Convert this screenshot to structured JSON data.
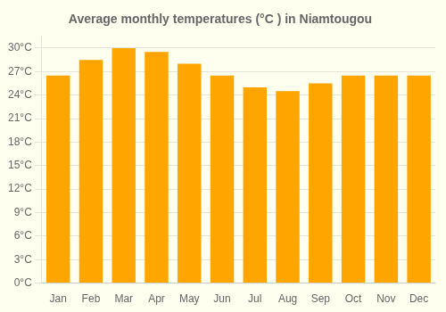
{
  "chart_data": {
    "type": "bar",
    "title": "Average monthly temperatures (°C ) in Niamtougou",
    "categories": [
      "Jan",
      "Feb",
      "Mar",
      "Apr",
      "May",
      "Jun",
      "Jul",
      "Aug",
      "Sep",
      "Oct",
      "Nov",
      "Dec"
    ],
    "values": [
      26.5,
      28.5,
      30.0,
      29.5,
      28.0,
      26.5,
      25.0,
      24.5,
      25.5,
      26.5,
      26.5,
      26.5
    ],
    "color": "#FFA500",
    "ylim": [
      0,
      31.5
    ],
    "yticks": [
      {
        "value": 0,
        "label": "0°C"
      },
      {
        "value": 3,
        "label": "3°C"
      },
      {
        "value": 6,
        "label": "6°C"
      },
      {
        "value": 9,
        "label": "9°C"
      },
      {
        "value": 12,
        "label": "12°C"
      },
      {
        "value": 15,
        "label": "15°C"
      },
      {
        "value": 18,
        "label": "18°C"
      },
      {
        "value": 21,
        "label": "21°C"
      },
      {
        "value": 24,
        "label": "24°C"
      },
      {
        "value": 27,
        "label": "27°C"
      },
      {
        "value": 30,
        "label": "30°C"
      }
    ],
    "grid": true
  }
}
